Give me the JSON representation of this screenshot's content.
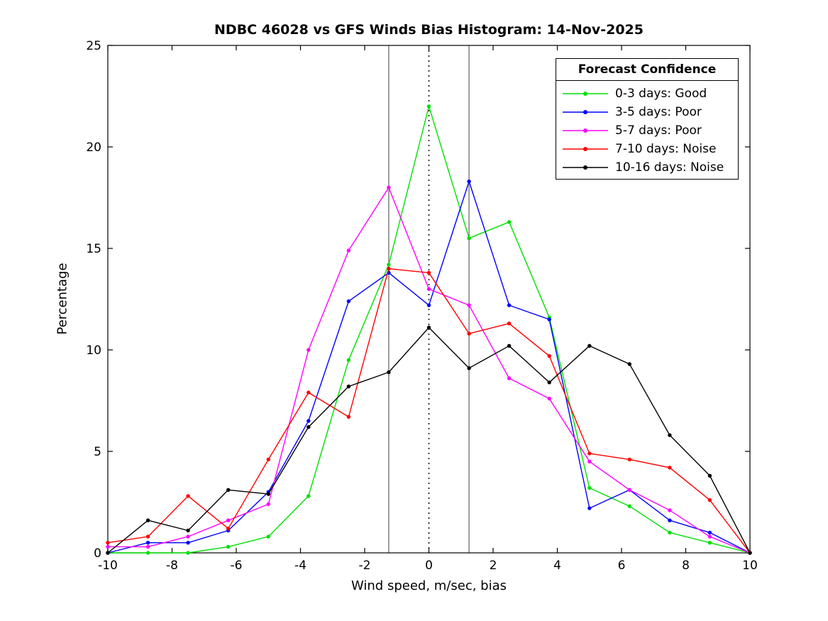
{
  "chart_data": {
    "type": "line",
    "title": "NDBC 46028 vs GFS Winds Bias Histogram: 14-Nov-2025",
    "xlabel": "Wind speed, m/sec, bias",
    "ylabel": "Percentage",
    "legend_title": "Forecast Confidence",
    "legend_position": "top-right",
    "grid": false,
    "xlim": [
      -10,
      10
    ],
    "ylim": [
      0,
      25
    ],
    "xticks": [
      -10,
      -8,
      -6,
      -4,
      -2,
      0,
      2,
      4,
      6,
      8,
      10
    ],
    "yticks": [
      0,
      5,
      10,
      15,
      20,
      25
    ],
    "vlines": [
      {
        "x": -1.25,
        "style": "solid",
        "color": "#808080"
      },
      {
        "x": 0,
        "style": "dotted",
        "color": "#000000"
      },
      {
        "x": 1.25,
        "style": "solid",
        "color": "#808080"
      }
    ],
    "x": [
      -10,
      -8.75,
      -7.5,
      -6.25,
      -5,
      -3.75,
      -2.5,
      -1.25,
      0,
      1.25,
      2.5,
      3.75,
      5,
      6.25,
      7.5,
      8.75,
      10
    ],
    "series": [
      {
        "name": "0-3 days: Good",
        "color": "#00e000",
        "values": [
          0,
          0,
          0,
          0.3,
          0.8,
          2.8,
          9.5,
          14.2,
          22.0,
          15.5,
          16.3,
          11.6,
          3.2,
          2.3,
          1.0,
          0.5,
          0
        ]
      },
      {
        "name": "3-5 days: Poor",
        "color": "#0000ff",
        "values": [
          0,
          0.5,
          0.5,
          1.1,
          3.0,
          6.5,
          12.4,
          13.8,
          12.2,
          18.3,
          12.2,
          11.5,
          2.2,
          3.1,
          1.6,
          1.0,
          0
        ]
      },
      {
        "name": "5-7 days: Poor",
        "color": "#ff00ff",
        "values": [
          0.3,
          0.3,
          0.8,
          1.6,
          2.4,
          10.0,
          14.9,
          18.0,
          13.0,
          12.2,
          8.6,
          7.6,
          4.5,
          3.1,
          2.1,
          0.8,
          0
        ]
      },
      {
        "name": "7-10 days: Noise",
        "color": "#ff0000",
        "values": [
          0.5,
          0.8,
          2.8,
          1.2,
          4.6,
          7.9,
          6.7,
          14.0,
          13.8,
          10.8,
          11.3,
          9.7,
          4.9,
          4.6,
          4.2,
          2.6,
          0
        ]
      },
      {
        "name": "10-16 days: Noise",
        "color": "#000000",
        "values": [
          0,
          1.6,
          1.1,
          3.1,
          2.9,
          6.2,
          8.2,
          8.9,
          11.1,
          9.1,
          10.2,
          8.4,
          10.2,
          9.3,
          5.8,
          3.8,
          0
        ]
      }
    ]
  }
}
